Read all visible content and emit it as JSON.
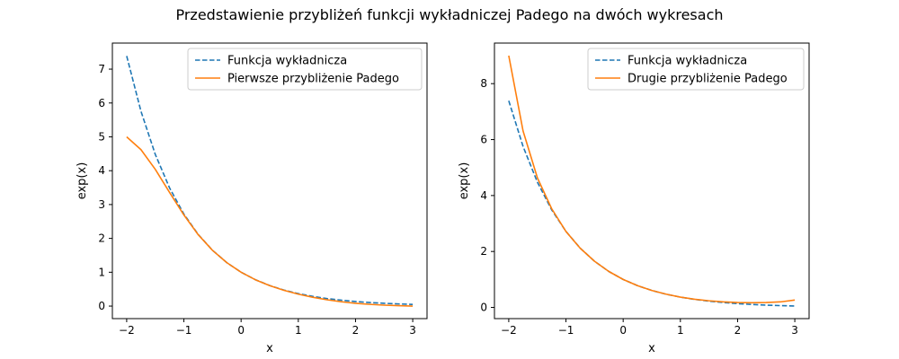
{
  "title": "Przedstawienie przybliżeń funkcji wykładniczej Padego na dwóch wykresach",
  "chart_data": [
    {
      "type": "line",
      "xlabel": "x",
      "ylabel": "exp(x)",
      "xlim": [
        -2.25,
        3.25
      ],
      "ylim": [
        -0.37,
        7.77
      ],
      "xticks": [
        -2,
        -1,
        0,
        1,
        2,
        3
      ],
      "yticks": [
        0,
        1,
        2,
        3,
        4,
        5,
        6,
        7
      ],
      "xtick_labels": [
        "−2",
        "−1",
        "0",
        "1",
        "2",
        "3"
      ],
      "ytick_labels": [
        "0",
        "1",
        "2",
        "3",
        "4",
        "5",
        "6",
        "7"
      ],
      "legend_position": "top-right",
      "grid": false,
      "x": [
        -2,
        -1.75,
        -1.5,
        -1.25,
        -1,
        -0.75,
        -0.5,
        -0.25,
        0,
        0.25,
        0.5,
        0.75,
        1,
        1.25,
        1.5,
        1.75,
        2,
        2.25,
        2.5,
        2.75,
        3
      ],
      "series": [
        {
          "name": "Funkcja wykładnicza",
          "color": "#1f77b4",
          "style": "dashed",
          "values": [
            7.389,
            5.755,
            4.482,
            3.49,
            2.718,
            2.117,
            1.649,
            1.284,
            1.0,
            0.779,
            0.607,
            0.472,
            0.368,
            0.287,
            0.223,
            0.174,
            0.135,
            0.105,
            0.082,
            0.064,
            0.05
          ]
        },
        {
          "name": "Pierwsze przybliżenie Padego",
          "color": "#ff7f0e",
          "style": "solid",
          "values": [
            5.0,
            4.622,
            4.04,
            3.358,
            2.692,
            2.11,
            1.647,
            1.284,
            1.0,
            0.778,
            0.604,
            0.465,
            0.352,
            0.261,
            0.187,
            0.128,
            0.083,
            0.051,
            0.028,
            0.012,
            0.0
          ]
        }
      ]
    },
    {
      "type": "line",
      "xlabel": "x",
      "ylabel": "exp(x)",
      "xlim": [
        -2.25,
        3.25
      ],
      "ylim": [
        -0.4,
        9.45
      ],
      "xticks": [
        -2,
        -1,
        0,
        1,
        2,
        3
      ],
      "yticks": [
        0,
        2,
        4,
        6,
        8
      ],
      "xtick_labels": [
        "−2",
        "−1",
        "0",
        "1",
        "2",
        "3"
      ],
      "ytick_labels": [
        "0",
        "2",
        "4",
        "6",
        "8"
      ],
      "legend_position": "top-right",
      "grid": false,
      "x": [
        -2,
        -1.75,
        -1.5,
        -1.25,
        -1,
        -0.75,
        -0.5,
        -0.25,
        0,
        0.25,
        0.5,
        0.75,
        1,
        1.25,
        1.5,
        1.75,
        2,
        2.25,
        2.5,
        2.75,
        3
      ],
      "series": [
        {
          "name": "Funkcja wykładnicza",
          "color": "#1f77b4",
          "style": "dashed",
          "values": [
            7.389,
            5.755,
            4.482,
            3.49,
            2.718,
            2.117,
            1.649,
            1.284,
            1.0,
            0.779,
            0.607,
            0.472,
            0.368,
            0.287,
            0.223,
            0.174,
            0.135,
            0.105,
            0.082,
            0.064,
            0.05
          ]
        },
        {
          "name": "Drugie przybliżenie Padego",
          "color": "#ff7f0e",
          "style": "solid",
          "values": [
            9.0,
            6.31,
            4.636,
            3.53,
            2.714,
            2.114,
            1.649,
            1.284,
            1.0,
            0.779,
            0.607,
            0.474,
            0.368,
            0.293,
            0.238,
            0.2,
            0.176,
            0.167,
            0.174,
            0.198,
            0.263
          ]
        }
      ]
    }
  ]
}
